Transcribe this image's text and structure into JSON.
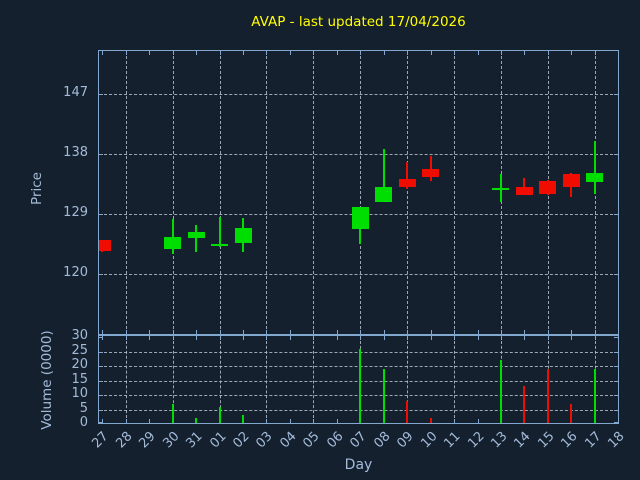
{
  "chart_data": {
    "type": "candlestick",
    "title": "AVAP - last updated 17/04/2026",
    "xlabel": "Day",
    "price_axis": {
      "label": "Price",
      "ticks": [
        147,
        138,
        129,
        120
      ],
      "ylim": [
        110.9,
        153.5
      ],
      "grid": "dashed"
    },
    "volume_axis": {
      "label": "Volume (0000)",
      "ticks": [
        30,
        25,
        20,
        15,
        10,
        5,
        0
      ],
      "ylim": [
        0,
        30
      ],
      "grid": "dashed"
    },
    "x_categories": [
      "27",
      "28",
      "29",
      "30",
      "31",
      "01",
      "02",
      "03",
      "04",
      "05",
      "06",
      "07",
      "08",
      "09",
      "10",
      "11",
      "12",
      "13",
      "14",
      "15",
      "16",
      "17",
      "18"
    ],
    "vertical_gridline_days": [
      "28",
      "30",
      "01",
      "03",
      "05",
      "07",
      "09",
      "11",
      "13",
      "15",
      "17"
    ],
    "candles": [
      {
        "day": "27",
        "open": 125.0,
        "high": 125.1,
        "low": 123.3,
        "close": 123.4,
        "volume": 0,
        "direction": "down"
      },
      {
        "day": "30",
        "open": 123.7,
        "high": 128.2,
        "low": 122.9,
        "close": 125.5,
        "volume": 7,
        "direction": "up"
      },
      {
        "day": "31",
        "open": 125.3,
        "high": 127.3,
        "low": 123.3,
        "close": 126.2,
        "volume": 2,
        "direction": "up"
      },
      {
        "day": "01",
        "open": 124.2,
        "high": 128.5,
        "low": 124.0,
        "close": 124.5,
        "volume": 6,
        "direction": "up"
      },
      {
        "day": "02",
        "open": 124.6,
        "high": 128.4,
        "low": 123.2,
        "close": 126.9,
        "volume": 3,
        "direction": "up"
      },
      {
        "day": "07",
        "open": 126.7,
        "high": 130.0,
        "low": 124.5,
        "close": 130.0,
        "volume": 26,
        "direction": "up"
      },
      {
        "day": "08",
        "open": 130.7,
        "high": 138.8,
        "low": 130.7,
        "close": 133.0,
        "volume": 19,
        "direction": "up"
      },
      {
        "day": "09",
        "open": 134.2,
        "high": 136.8,
        "low": 132.8,
        "close": 133.0,
        "volume": 8,
        "direction": "down"
      },
      {
        "day": "10",
        "open": 135.7,
        "high": 137.7,
        "low": 133.9,
        "close": 134.6,
        "volume": 2,
        "direction": "down"
      },
      {
        "day": "13",
        "open": 132.6,
        "high": 135.0,
        "low": 130.7,
        "close": 132.9,
        "volume": 22,
        "direction": "up"
      },
      {
        "day": "14",
        "open": 133.0,
        "high": 134.4,
        "low": 131.8,
        "close": 131.8,
        "volume": 13,
        "direction": "down"
      },
      {
        "day": "15",
        "open": 134.0,
        "high": 134.1,
        "low": 131.9,
        "close": 132.0,
        "volume": 19,
        "direction": "down"
      },
      {
        "day": "16",
        "open": 135.0,
        "high": 135.1,
        "low": 131.5,
        "close": 133.1,
        "volume": 7,
        "direction": "down"
      },
      {
        "day": "17",
        "open": 133.8,
        "high": 139.9,
        "low": 132.0,
        "close": 135.2,
        "volume": 19,
        "direction": "up"
      }
    ],
    "colors": {
      "up": "#00dd00",
      "down": "#f00d00",
      "background": "#15202f",
      "frame": "#82a8cf",
      "grid": "#b6bfc9",
      "tick_label": "#a3bbd8",
      "title": "#ffff00"
    },
    "legend": null
  }
}
